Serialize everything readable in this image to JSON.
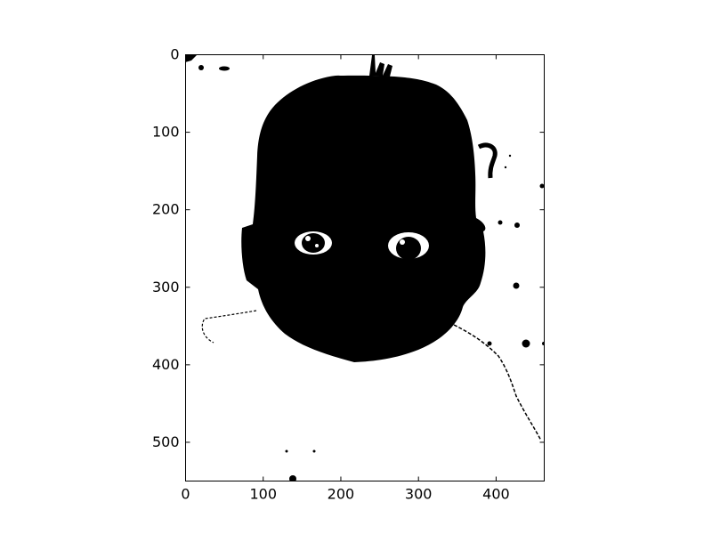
{
  "chart_data": {
    "type": "heatmap",
    "title": "",
    "xlabel": "",
    "ylabel": "",
    "xlim": [
      0,
      462
    ],
    "ylim": [
      550,
      0
    ],
    "y_inverted": true,
    "grid": false,
    "colormap": "binary (black and white)",
    "x_ticks": [
      0,
      100,
      200,
      300,
      400
    ],
    "y_ticks": [
      0,
      100,
      200,
      300,
      400,
      500
    ],
    "x_tick_labels": [
      "0",
      "100",
      "200",
      "300",
      "400"
    ],
    "y_tick_labels": [
      "0",
      "100",
      "200",
      "300",
      "400",
      "500"
    ],
    "content": "Binary thresholded image of a baby's head (black silhouette with white eye highlights) on a white background"
  },
  "colors": {
    "foreground": "#000000",
    "background": "#ffffff"
  }
}
